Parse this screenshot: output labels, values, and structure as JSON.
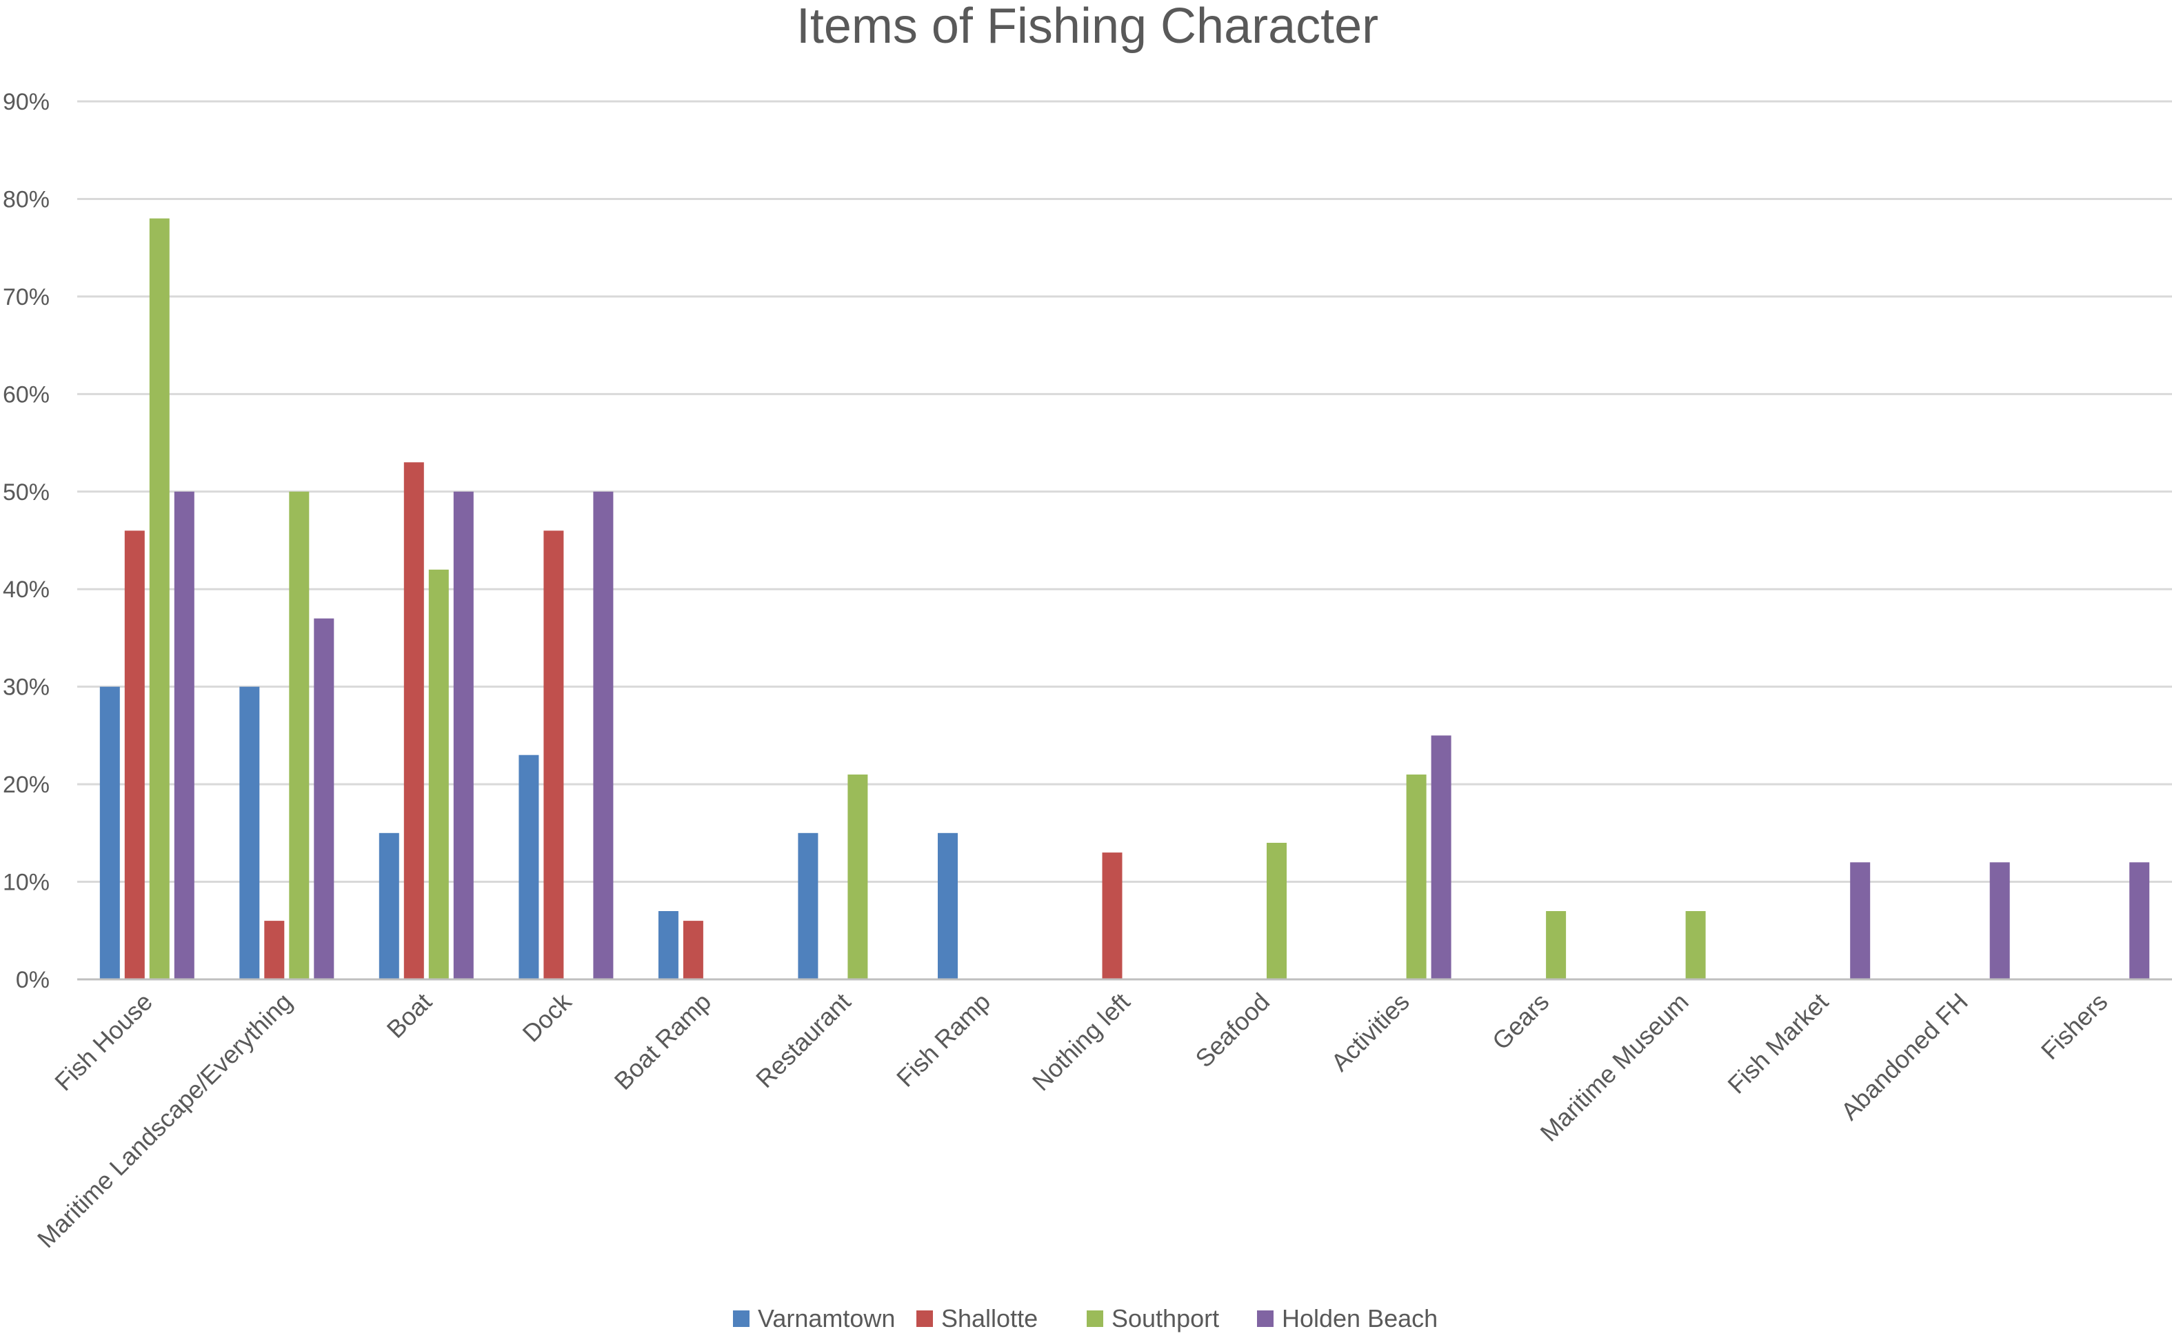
{
  "chart_data": {
    "type": "bar",
    "title": "Items of Fishing Character",
    "xlabel": "",
    "ylabel": "",
    "ylim": [
      0,
      90
    ],
    "yticks": [
      "0%",
      "10%",
      "20%",
      "30%",
      "40%",
      "50%",
      "60%",
      "70%",
      "80%",
      "90%"
    ],
    "ytick_values": [
      0,
      10,
      20,
      30,
      40,
      50,
      60,
      70,
      80,
      90
    ],
    "grid": true,
    "legend_position": "bottom",
    "categories": [
      "Fish House",
      "Maritime Landscape/Everything",
      "Boat",
      "Dock",
      "Boat Ramp",
      "Restaurant",
      "Fish Ramp",
      "Nothing left",
      "Seafood",
      "Activities",
      "Gears",
      "Maritime Museum",
      "Fish Market",
      "Abandoned FH",
      "Fishers"
    ],
    "series": [
      {
        "name": "Varnamtown",
        "color": "#4f81bd",
        "values": [
          30,
          30,
          15,
          23,
          7,
          15,
          15,
          0,
          0,
          0,
          0,
          0,
          0,
          0,
          0
        ]
      },
      {
        "name": "Shallotte",
        "color": "#c0504d",
        "values": [
          46,
          6,
          53,
          46,
          6,
          0,
          0,
          13,
          0,
          0,
          0,
          0,
          0,
          0,
          0
        ]
      },
      {
        "name": "Southport",
        "color": "#9bbb59",
        "values": [
          78,
          50,
          42,
          0,
          0,
          21,
          0,
          0,
          14,
          21,
          7,
          7,
          0,
          0,
          0
        ]
      },
      {
        "name": "Holden Beach",
        "color": "#8064a2",
        "values": [
          50,
          37,
          50,
          50,
          0,
          0,
          0,
          0,
          0,
          25,
          0,
          0,
          12,
          12,
          12
        ]
      }
    ]
  }
}
